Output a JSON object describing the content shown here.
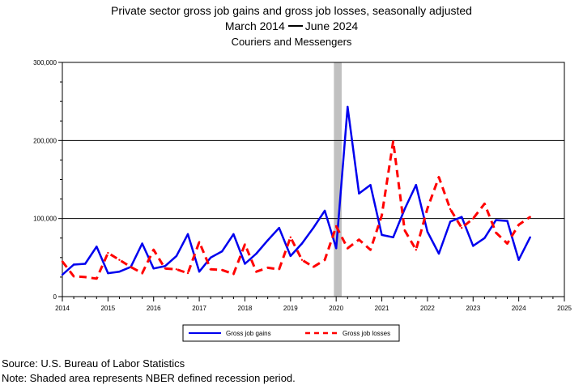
{
  "title": {
    "line1": "Private sector gross job gains and gross job losses, seasonally adjusted",
    "line2_start": "March 2014",
    "line2_end": "June 2024",
    "line3": "Couriers and Messengers"
  },
  "footer": {
    "source": "Source: U.S. Bureau of Labor Statistics",
    "note": "Note: Shaded area represents NBER defined recession period."
  },
  "chart_data": {
    "type": "line",
    "xlabel": "",
    "ylabel": "",
    "xlim": [
      2014,
      2025
    ],
    "ylim": [
      0,
      300000
    ],
    "x_ticks": [
      2014,
      2015,
      2016,
      2017,
      2018,
      2019,
      2020,
      2021,
      2022,
      2023,
      2024,
      2025
    ],
    "y_ticks": [
      {
        "value": 0,
        "label": "0"
      },
      {
        "value": 100000,
        "label": "100,000"
      },
      {
        "value": 200000,
        "label": "200,000"
      },
      {
        "value": 300000,
        "label": "300,000"
      }
    ],
    "gridlines": [
      100000,
      200000
    ],
    "recession": {
      "start": 2019.95,
      "end": 2020.12,
      "color": "#c0c0c0"
    },
    "legend_position": "bottom",
    "series": [
      {
        "name": "Gross job gains",
        "color": "#0000ee",
        "style": "solid",
        "x": [
          2014.0,
          2014.25,
          2014.5,
          2014.75,
          2015.0,
          2015.25,
          2015.5,
          2015.75,
          2016.0,
          2016.25,
          2016.5,
          2016.75,
          2017.0,
          2017.25,
          2017.5,
          2017.75,
          2018.0,
          2018.25,
          2018.5,
          2018.75,
          2019.0,
          2019.25,
          2019.5,
          2019.75,
          2020.0,
          2020.25,
          2020.5,
          2020.75,
          2021.0,
          2021.25,
          2021.5,
          2021.75,
          2022.0,
          2022.25,
          2022.5,
          2022.75,
          2023.0,
          2023.25,
          2023.5,
          2023.75,
          2024.0,
          2024.25
        ],
        "values": [
          28000,
          41000,
          42000,
          64000,
          30000,
          32000,
          38000,
          68000,
          36000,
          39000,
          52000,
          80000,
          32000,
          50000,
          58000,
          80000,
          42000,
          55000,
          72000,
          88000,
          52000,
          68000,
          88000,
          110000,
          62000,
          243000,
          132000,
          143000,
          79000,
          76000,
          112000,
          143000,
          83000,
          55000,
          96000,
          102000,
          65000,
          75000,
          98000,
          97000,
          47000,
          76000
        ]
      },
      {
        "name": "Gross job losses",
        "color": "#ff0000",
        "style": "dashed",
        "x": [
          2014.0,
          2014.25,
          2014.5,
          2014.75,
          2015.0,
          2015.25,
          2015.5,
          2015.75,
          2016.0,
          2016.25,
          2016.5,
          2016.75,
          2017.0,
          2017.25,
          2017.5,
          2017.75,
          2018.0,
          2018.25,
          2018.5,
          2018.75,
          2019.0,
          2019.25,
          2019.5,
          2019.75,
          2020.0,
          2020.25,
          2020.5,
          2020.75,
          2021.0,
          2021.25,
          2021.5,
          2021.75,
          2022.0,
          2022.25,
          2022.5,
          2022.75,
          2023.0,
          2023.25,
          2023.5,
          2023.75,
          2024.0,
          2024.25
        ],
        "values": [
          45000,
          26000,
          25000,
          23000,
          56000,
          47000,
          38000,
          30000,
          60000,
          36000,
          35000,
          30000,
          70000,
          35000,
          34000,
          29000,
          67000,
          32000,
          37000,
          35000,
          76000,
          47000,
          38000,
          47000,
          90000,
          62000,
          73000,
          60000,
          104000,
          199000,
          85000,
          60000,
          113000,
          153000,
          112000,
          88000,
          100000,
          119000,
          82000,
          68000,
          92000,
          102000
        ]
      }
    ]
  }
}
